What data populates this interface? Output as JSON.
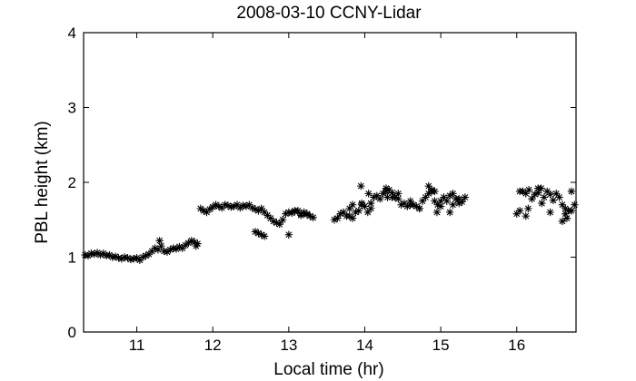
{
  "chart_data": {
    "type": "scatter",
    "title": "2008-03-10 CCNY-Lidar",
    "xlabel": "Local time (hr)",
    "ylabel": "PBL height (km)",
    "xlim": [
      10.3,
      16.78
    ],
    "ylim": [
      0,
      4
    ],
    "xticks": [
      11,
      12,
      13,
      14,
      15,
      16
    ],
    "yticks": [
      0,
      1,
      2,
      3,
      4
    ],
    "marker": "*",
    "marker_color": "#000000",
    "grid": false,
    "x": [
      10.32,
      10.36,
      10.4,
      10.44,
      10.48,
      10.52,
      10.56,
      10.6,
      10.64,
      10.68,
      10.72,
      10.76,
      10.8,
      10.84,
      10.88,
      10.92,
      10.96,
      11.0,
      11.04,
      11.08,
      11.12,
      11.16,
      11.2,
      11.24,
      11.28,
      11.32,
      11.36,
      11.4,
      11.44,
      11.48,
      11.52,
      11.56,
      11.6,
      11.64,
      11.68,
      11.72,
      11.76,
      11.8,
      11.84,
      11.88,
      11.92,
      11.96,
      12.0,
      12.04,
      12.08,
      12.12,
      12.16,
      12.2,
      12.24,
      12.28,
      12.32,
      12.36,
      12.4,
      12.44,
      12.48,
      12.52,
      12.56,
      12.6,
      12.64,
      12.68,
      12.72,
      12.76,
      12.8,
      12.84,
      12.88,
      12.92,
      12.96,
      13.0,
      13.04,
      13.08,
      13.12,
      13.16,
      13.2,
      13.24,
      13.28,
      13.32,
      13.6,
      13.64,
      13.68,
      13.72,
      13.76,
      13.8,
      13.84,
      13.88,
      13.92,
      13.96,
      14.0,
      14.04,
      14.08,
      14.12,
      14.16,
      14.2,
      14.24,
      14.28,
      14.32,
      14.36,
      14.4,
      14.44,
      14.48,
      14.52,
      14.56,
      14.6,
      14.64,
      14.68,
      14.72,
      14.76,
      14.8,
      14.84,
      14.88,
      14.92,
      14.96,
      15.0,
      15.04,
      15.08,
      15.12,
      15.16,
      15.2,
      15.24,
      15.28,
      15.32,
      16.0,
      16.04,
      16.08,
      16.12,
      16.16,
      16.2,
      16.24,
      16.28,
      16.32,
      16.36,
      16.4,
      16.44,
      16.48,
      16.52,
      16.56,
      16.6,
      16.64,
      16.68,
      16.72,
      16.76,
      12.6,
      12.64,
      12.68,
      12.56,
      13.0,
      13.08,
      13.16,
      13.24,
      13.8,
      13.84,
      13.96,
      14.08,
      14.28,
      14.36,
      14.44,
      14.6,
      14.72,
      14.84,
      14.92,
      15.0,
      15.12,
      15.16,
      15.24,
      16.04,
      16.12,
      16.28,
      16.44,
      16.6,
      16.64,
      16.72,
      11.3,
      11.78,
      13.95,
      14.05,
      14.3,
      14.88,
      14.95,
      16.15,
      16.33,
      16.66
    ],
    "y": [
      1.03,
      1.02,
      1.05,
      1.04,
      1.06,
      1.03,
      1.05,
      1.02,
      1.03,
      1.0,
      1.01,
      0.99,
      0.98,
      1.0,
      0.99,
      0.97,
      0.98,
      0.99,
      0.96,
      1.0,
      1.02,
      1.04,
      1.08,
      1.12,
      1.1,
      1.15,
      1.08,
      1.07,
      1.1,
      1.12,
      1.11,
      1.14,
      1.12,
      1.16,
      1.19,
      1.22,
      1.2,
      1.18,
      1.65,
      1.62,
      1.6,
      1.64,
      1.67,
      1.7,
      1.68,
      1.66,
      1.7,
      1.69,
      1.67,
      1.68,
      1.7,
      1.66,
      1.69,
      1.68,
      1.7,
      1.66,
      1.64,
      1.62,
      1.65,
      1.6,
      1.56,
      1.52,
      1.48,
      1.46,
      1.44,
      1.5,
      1.58,
      1.6,
      1.59,
      1.61,
      1.62,
      1.58,
      1.6,
      1.57,
      1.55,
      1.53,
      1.5,
      1.52,
      1.58,
      1.6,
      1.55,
      1.65,
      1.7,
      1.6,
      1.62,
      1.72,
      1.68,
      1.6,
      1.72,
      1.8,
      1.82,
      1.78,
      1.85,
      1.88,
      1.9,
      1.86,
      1.8,
      1.78,
      1.7,
      1.72,
      1.68,
      1.75,
      1.7,
      1.68,
      1.65,
      1.75,
      1.8,
      1.85,
      1.88,
      1.75,
      1.7,
      1.68,
      1.8,
      1.75,
      1.82,
      1.7,
      1.78,
      1.72,
      1.74,
      1.8,
      1.58,
      1.62,
      1.88,
      1.85,
      1.9,
      1.78,
      1.84,
      1.86,
      1.92,
      1.8,
      1.88,
      1.84,
      1.76,
      1.85,
      1.8,
      1.7,
      1.65,
      1.62,
      1.88,
      1.7,
      1.32,
      1.3,
      1.28,
      1.34,
      1.3,
      1.62,
      1.56,
      1.58,
      1.55,
      1.52,
      1.7,
      1.65,
      1.92,
      1.8,
      1.85,
      1.7,
      1.65,
      1.95,
      1.88,
      1.75,
      1.6,
      1.85,
      1.78,
      1.88,
      1.55,
      1.92,
      1.6,
      1.48,
      1.58,
      1.62,
      1.22,
      1.15,
      1.95,
      1.85,
      1.8,
      1.9,
      1.6,
      1.65,
      1.72,
      1.52
    ]
  }
}
